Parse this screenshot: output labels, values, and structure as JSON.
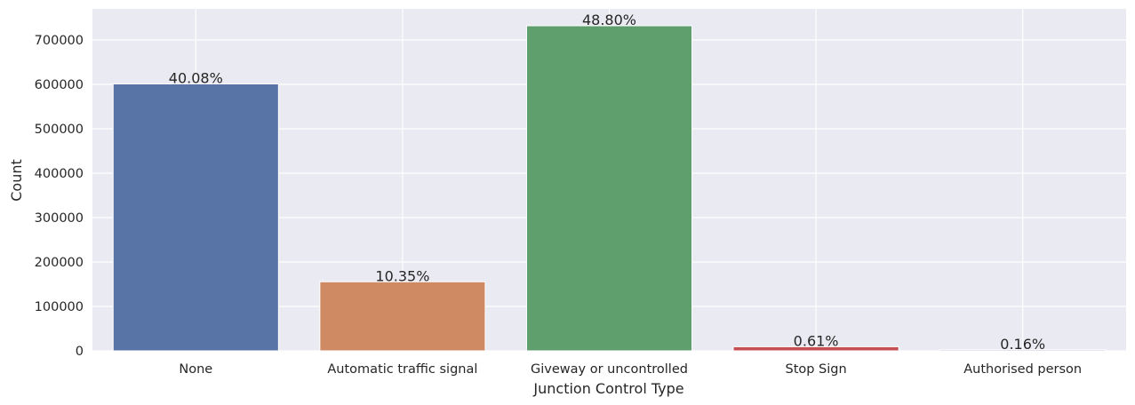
{
  "chart_data": {
    "type": "bar",
    "title": "",
    "xlabel": "Junction Control Type",
    "ylabel": "Count",
    "categories": [
      "None",
      "Automatic traffic signal",
      "Giveway or uncontrolled",
      "Stop Sign",
      "Authorised person"
    ],
    "values": [
      601000,
      155500,
      732000,
      9200,
      2400
    ],
    "percent_labels": [
      "40.08%",
      "10.35%",
      "48.80%",
      "0.61%",
      "0.16%"
    ],
    "yticks": [
      0,
      100000,
      200000,
      300000,
      400000,
      500000,
      600000,
      700000
    ],
    "ylim": [
      0,
      770000
    ],
    "grid": true,
    "legend": "none",
    "colors": [
      "#5874a6",
      "#cf8a64",
      "#5f9f6e",
      "#c44e52",
      "#8172b2"
    ],
    "background": "#eaeaf2"
  }
}
